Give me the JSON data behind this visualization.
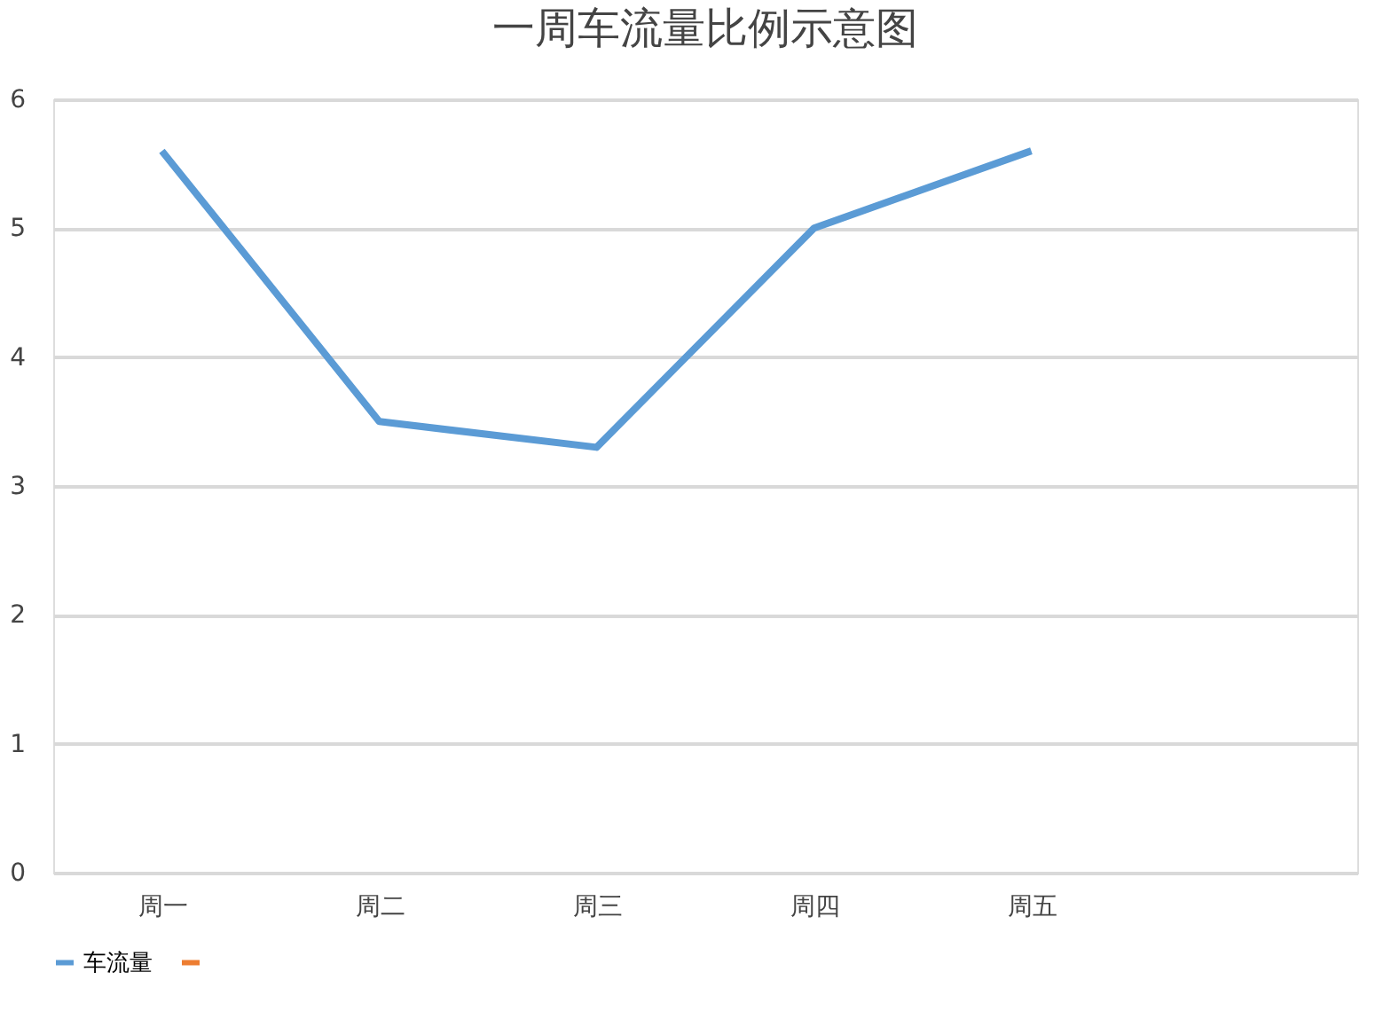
{
  "chart_data": {
    "type": "line",
    "title": "一周车流量比例示意图",
    "categories": [
      "周一",
      "周二",
      "周三",
      "周四",
      "周五",
      null
    ],
    "series": [
      {
        "name": "车流量",
        "color": "#5b9bd5",
        "values": [
          5.6,
          3.5,
          3.3,
          5.0,
          5.6,
          null
        ]
      },
      {
        "color": "#ed7d31",
        "values": [
          null,
          null,
          null,
          null,
          null,
          null
        ]
      }
    ],
    "ylim": [
      0,
      6
    ],
    "yticks": [
      0,
      1,
      2,
      3,
      4,
      5,
      6
    ],
    "grid": "y",
    "legend": "bottom",
    "marker": "none",
    "line_style": "solid"
  }
}
